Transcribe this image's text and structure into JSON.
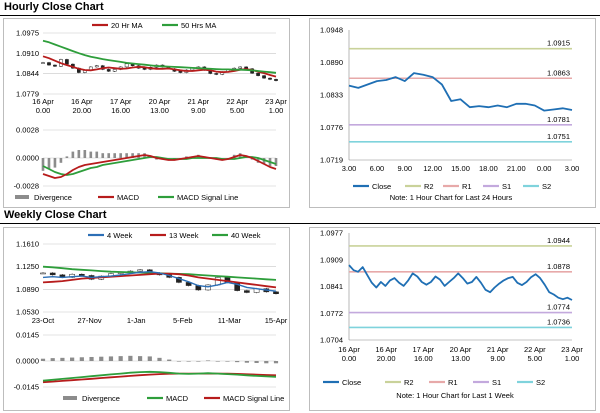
{
  "sections": {
    "hourly_title": "Hourly Close Chart",
    "weekly_title": "Weekly Close Chart"
  },
  "colors": {
    "close": "#1f6fb4",
    "ma_short": "#b71c1c",
    "ma_long": "#2e9e3b",
    "macd": "#b71c1c",
    "signal": "#2e9e3b",
    "divergence": "#8c8c8c",
    "r2": "#c9d29a",
    "r1": "#e7a9a9",
    "s1": "#c3a9dd",
    "s2": "#7fd3dc"
  },
  "chart_data": [
    {
      "id": "hourly_ma",
      "type": "line",
      "legend": [
        "20 Hr MA",
        "50 Hrs MA"
      ],
      "ylim": [
        1.0779,
        1.0975
      ],
      "yticks": [
        "1.0975",
        "1.0910",
        "1.0844",
        "1.0779"
      ],
      "xticks": [
        [
          "16 Apr",
          "0.00"
        ],
        [
          "16 Apr",
          "20.00"
        ],
        [
          "17 Apr",
          "16.00"
        ],
        [
          "20 Apr",
          "13.00"
        ],
        [
          "21 Apr",
          "9.00"
        ],
        [
          "22 Apr",
          "5.00"
        ],
        [
          "23 Apr",
          "1.00"
        ]
      ],
      "series": [
        {
          "name": "Close",
          "values": [
            1.088,
            1.0872,
            1.0868,
            1.089,
            1.0875,
            1.0862,
            1.0848,
            1.0855,
            1.0866,
            1.087,
            1.0858,
            1.0852,
            1.0858,
            1.0866,
            1.0876,
            1.087,
            1.0862,
            1.0858,
            1.0865,
            1.0872,
            1.0866,
            1.086,
            1.0852,
            1.0848,
            1.0856,
            1.0862,
            1.0866,
            1.0856,
            1.0845,
            1.0842,
            1.085,
            1.0857,
            1.0862,
            1.0866,
            1.086,
            1.0846,
            1.0838,
            1.083,
            1.0826,
            1.0822
          ]
        },
        {
          "name": "20 Hr MA",
          "values": [
            1.09,
            1.0894,
            1.0886,
            1.0878,
            1.0872,
            1.0866,
            1.086,
            1.0856,
            1.0855,
            1.0858,
            1.0862,
            1.0864,
            1.0862,
            1.086,
            1.0861,
            1.0864,
            1.0866,
            1.0865,
            1.0862,
            1.086,
            1.086,
            1.0861,
            1.0858,
            1.0855,
            1.0853,
            1.0853,
            1.0855,
            1.0857,
            1.0855,
            1.0851,
            1.0849,
            1.085,
            1.0853,
            1.0857,
            1.0859,
            1.0856,
            1.0851,
            1.0846,
            1.084,
            1.0835
          ]
        },
        {
          "name": "50 Hrs MA",
          "values": [
            1.095,
            1.0945,
            1.0938,
            1.0931,
            1.0924,
            1.0917,
            1.091,
            1.0904,
            1.0899,
            1.0895,
            1.0891,
            1.0888,
            1.0885,
            1.0882,
            1.0879,
            1.0877,
            1.0875,
            1.0873,
            1.0871,
            1.0869,
            1.0868,
            1.0867,
            1.0866,
            1.0865,
            1.0864,
            1.0863,
            1.0862,
            1.0861,
            1.086,
            1.0859,
            1.0858,
            1.0858,
            1.0857,
            1.0857,
            1.0856,
            1.0855,
            1.0853,
            1.0851,
            1.0849,
            1.0847
          ]
        }
      ]
    },
    {
      "id": "hourly_macd",
      "type": "line",
      "legend": [
        "Divergence",
        "MACD",
        "MACD Signal Line"
      ],
      "ylim": [
        -0.0028,
        0.0028
      ],
      "yticks": [
        "0.0028",
        "0.0000",
        "-0.0028"
      ],
      "series": [
        {
          "name": "MACD",
          "values": [
            -0.0016,
            -0.0018,
            -0.002,
            -0.0019,
            -0.0016,
            -0.0012,
            -0.0009,
            -0.0007,
            -0.0006,
            -0.0005,
            -0.0004,
            -0.0003,
            -0.0002,
            -0.0001,
            0.0,
            0.0001,
            0.0002,
            0.0003,
            0.0002,
            0.0,
            -0.0001,
            -0.0002,
            -0.0002,
            -0.0001,
            0.0,
            0.0001,
            0.0002,
            0.0001,
            0.0,
            -0.0001,
            -0.0002,
            -0.0001,
            0.0001,
            0.0003,
            0.0002,
            0.0,
            -0.0003,
            -0.0006,
            -0.0009,
            -0.0011
          ]
        },
        {
          "name": "MACD Signal Line",
          "values": [
            -0.0008,
            -0.0011,
            -0.0014,
            -0.0016,
            -0.0017,
            -0.0016,
            -0.0014,
            -0.0012,
            -0.001,
            -0.0009,
            -0.0007,
            -0.0006,
            -0.0005,
            -0.0004,
            -0.0003,
            -0.0002,
            -0.0001,
            0.0,
            0.0001,
            0.0001,
            0.0,
            -0.0001,
            -0.0001,
            -0.0001,
            -0.0001,
            0.0,
            0.0,
            0.0,
            0.0,
            0.0,
            -0.0001,
            -0.0001,
            -0.0001,
            0.0,
            0.0001,
            0.0001,
            0.0,
            -0.0002,
            -0.0004,
            -0.0006
          ]
        }
      ]
    },
    {
      "id": "hourly_24h",
      "type": "line",
      "ylim": [
        1.0719,
        1.0948
      ],
      "yticks": [
        "1.0948",
        "1.0890",
        "1.0833",
        "1.0776",
        "1.0719"
      ],
      "xticks": [
        "3.00",
        "6.00",
        "9.00",
        "12.00",
        "15.00",
        "18.00",
        "21.00",
        "0.00",
        "3.00"
      ],
      "levels": [
        {
          "name": "R2",
          "value": 1.0915,
          "label": "1.0915"
        },
        {
          "name": "R1",
          "value": 1.0863,
          "label": "1.0863"
        },
        {
          "name": "S1",
          "value": 1.0781,
          "label": "1.0781"
        },
        {
          "name": "S2",
          "value": 1.0751,
          "label": "1.0751"
        }
      ],
      "legend": [
        "Close",
        "R2",
        "R1",
        "S1",
        "S2"
      ],
      "note": "Note: 1 Hour Chart for Last 24 Hours",
      "series": [
        {
          "name": "Close",
          "values": [
            1.085,
            1.0846,
            1.0852,
            1.0858,
            1.086,
            1.0865,
            1.0858,
            1.0872,
            1.0869,
            1.0865,
            1.0852,
            1.0823,
            1.0826,
            1.0812,
            1.0814,
            1.0812,
            1.0815,
            1.0812,
            1.0818,
            1.0818,
            1.0815,
            1.0806,
            1.0808,
            1.081,
            1.0807
          ]
        }
      ]
    },
    {
      "id": "weekly_ma",
      "type": "line",
      "legend": [
        "4 Week",
        "13 Week",
        "40 Week"
      ],
      "ylim": [
        1.053,
        1.161
      ],
      "yticks": [
        "1.1610",
        "1.1250",
        "1.0890",
        "1.0530"
      ],
      "xticks": [
        "23-Oct",
        "27-Nov",
        "1-Jan",
        "5-Feb",
        "11-Mar",
        "15-Apr"
      ],
      "series": [
        {
          "name": "Close",
          "values": [
            1.115,
            1.112,
            1.108,
            1.113,
            1.111,
            1.105,
            1.11,
            1.114,
            1.116,
            1.118,
            1.12,
            1.115,
            1.112,
            1.108,
            1.1,
            1.095,
            1.088,
            1.096,
            1.108,
            1.1,
            1.087,
            1.084,
            1.09,
            1.085,
            1.082
          ]
        },
        {
          "name": "4 Week",
          "values": [
            1.108,
            1.109,
            1.108,
            1.109,
            1.11,
            1.108,
            1.109,
            1.11,
            1.112,
            1.114,
            1.116,
            1.117,
            1.115,
            1.111,
            1.106,
            1.101,
            1.095,
            1.093,
            1.096,
            1.1,
            1.097,
            1.092,
            1.09,
            1.088,
            1.086
          ]
        },
        {
          "name": "13 Week",
          "values": [
            1.1,
            1.101,
            1.102,
            1.104,
            1.106,
            1.107,
            1.108,
            1.109,
            1.11,
            1.111,
            1.112,
            1.113,
            1.114,
            1.114,
            1.113,
            1.111,
            1.108,
            1.106,
            1.104,
            1.102,
            1.1,
            1.098,
            1.096,
            1.094,
            1.092
          ]
        },
        {
          "name": "40 Week",
          "values": [
            1.125,
            1.124,
            1.1225,
            1.121,
            1.12,
            1.119,
            1.118,
            1.117,
            1.1165,
            1.116,
            1.1155,
            1.115,
            1.1145,
            1.114,
            1.1135,
            1.113,
            1.112,
            1.111,
            1.11,
            1.109,
            1.108,
            1.107,
            1.106,
            1.105,
            1.104
          ]
        }
      ]
    },
    {
      "id": "weekly_macd",
      "type": "line",
      "legend": [
        "Divergence",
        "MACD",
        "MACD Signal Line"
      ],
      "ylim": [
        -0.0145,
        0.0145
      ],
      "yticks": [
        "0.0145",
        "0.0000",
        "-0.0145"
      ],
      "series": [
        {
          "name": "MACD",
          "values": [
            -0.011,
            -0.0105,
            -0.01,
            -0.0095,
            -0.009,
            -0.0085,
            -0.008,
            -0.0075,
            -0.007,
            -0.0065,
            -0.0062,
            -0.006,
            -0.0062,
            -0.0066,
            -0.007,
            -0.0072,
            -0.007,
            -0.0068,
            -0.007,
            -0.0073,
            -0.0076,
            -0.008,
            -0.0083,
            -0.0086,
            -0.0088
          ]
        },
        {
          "name": "MACD Signal Line",
          "values": [
            -0.0118,
            -0.0115,
            -0.0111,
            -0.0107,
            -0.0103,
            -0.0099,
            -0.0095,
            -0.0091,
            -0.0087,
            -0.0083,
            -0.0079,
            -0.0076,
            -0.0073,
            -0.0071,
            -0.007,
            -0.007,
            -0.007,
            -0.007,
            -0.007,
            -0.0071,
            -0.0072,
            -0.0074,
            -0.0076,
            -0.0078,
            -0.008
          ]
        }
      ]
    },
    {
      "id": "weekly_1w",
      "type": "line",
      "ylim": [
        1.0704,
        1.0977
      ],
      "yticks": [
        "1.0977",
        "1.0909",
        "1.0841",
        "1.0772",
        "1.0704"
      ],
      "xticks": [
        [
          "16 Apr",
          "0.00"
        ],
        [
          "16 Apr",
          "20.00"
        ],
        [
          "17 Apr",
          "16.00"
        ],
        [
          "20 Apr",
          "13.00"
        ],
        [
          "21 Apr",
          "9.00"
        ],
        [
          "22 Apr",
          "5.00"
        ],
        [
          "23 Apr",
          "1.00"
        ]
      ],
      "levels": [
        {
          "name": "R2",
          "value": 1.0944,
          "label": "1.0944"
        },
        {
          "name": "R1",
          "value": 1.0878,
          "label": "1.0878"
        },
        {
          "name": "S1",
          "value": 1.0774,
          "label": "1.0774"
        },
        {
          "name": "S2",
          "value": 1.0736,
          "label": "1.0736"
        }
      ],
      "legend": [
        "Close",
        "R2",
        "R1",
        "S1",
        "S2"
      ],
      "note": "Note: 1 Hour Chart for Last 1 Week",
      "series": [
        {
          "name": "Close",
          "values": [
            1.0895,
            1.0882,
            1.0878,
            1.089,
            1.087,
            1.085,
            1.0838,
            1.0852,
            1.0842,
            1.0856,
            1.0862,
            1.085,
            1.0842,
            1.0856,
            1.0874,
            1.0866,
            1.0852,
            1.0845,
            1.0852,
            1.0866,
            1.0858,
            1.0842,
            1.0852,
            1.0862,
            1.0874,
            1.0862,
            1.0848,
            1.0852,
            1.0865,
            1.085,
            1.0832,
            1.0826,
            1.0838,
            1.0848,
            1.0856,
            1.0862,
            1.0865,
            1.085,
            1.0844,
            1.0852,
            1.0864,
            1.0872,
            1.0862,
            1.0845,
            1.0826,
            1.082,
            1.0812,
            1.0808,
            1.0812,
            1.0806
          ]
        }
      ]
    }
  ]
}
